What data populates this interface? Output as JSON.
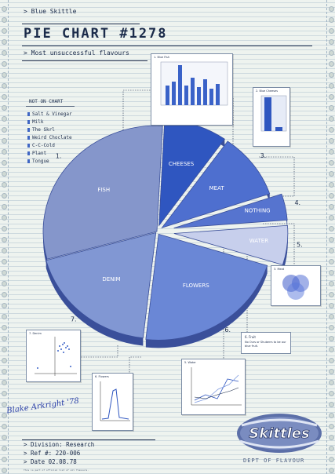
{
  "header": {
    "brand": "> Blue Skittle",
    "title": "PIE CHART #1278",
    "subtitle": "> Most unsuccessful flavours"
  },
  "legend": {
    "title": "NOT ON CHART",
    "items": [
      "Salt & Vinegar",
      "Milk",
      "The Skrl",
      "Weird Choclate",
      "C-C-Cold",
      "Plant",
      "Tongue"
    ]
  },
  "chart_data": {
    "type": "pie",
    "categories": [
      "FISH",
      "CHEESES",
      "MEAT",
      "NOTHING",
      "WATER",
      "FLOWERS",
      "DENIM"
    ],
    "values": [
      30,
      9,
      10,
      4,
      6,
      22,
      19
    ],
    "numbers": [
      "1.",
      "2.",
      "3.",
      "4.",
      "5.",
      "6.",
      "7."
    ],
    "colors": [
      "#8596cb",
      "#2f56c0",
      "#4e6fcf",
      "#5674cf",
      "#c7cfec",
      "#6a87d6",
      "#8197d3"
    ]
  },
  "cards": {
    "blue_fish": "1. Blue Fish",
    "blue_cheeses": "2. Blue Cheeses",
    "meat": "3. Meat",
    "fruit_title": "6. Fruit",
    "fruit_text": "No Ours or Shuberrs to be our blue fruit.",
    "denim": "7. Denim",
    "flowers": "6. Flowers",
    "water": "5. Water"
  },
  "signature": "Blake Arkright '78",
  "footer": {
    "division": "> Division: Research",
    "ref": "> Ref #:  220-006",
    "date": "> Date     02.08.78",
    "fine": "This is part of official list of all flavours."
  },
  "logo": {
    "text": "Skittles",
    "dept": "DEPT OF FLAVOUR"
  }
}
